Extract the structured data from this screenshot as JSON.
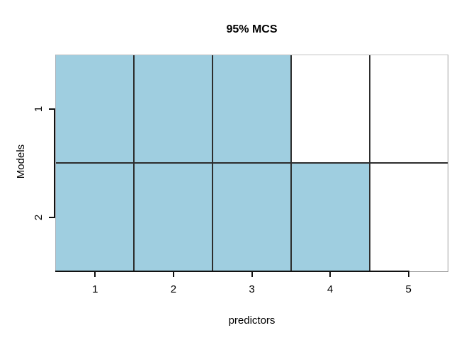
{
  "chart_data": {
    "type": "heatmap",
    "title": "95% MCS",
    "xlabel": "predictors",
    "ylabel": "Models",
    "x_ticks": [
      "1",
      "2",
      "3",
      "4",
      "5"
    ],
    "y_ticks": [
      "1",
      "2"
    ],
    "categories": [
      "1",
      "2",
      "3",
      "4",
      "5"
    ],
    "series": [
      {
        "name": "1",
        "included": [
          1,
          1,
          1,
          0,
          0
        ]
      },
      {
        "name": "2",
        "included": [
          1,
          1,
          1,
          1,
          0
        ]
      }
    ],
    "xlim": [
      0.5,
      5.5
    ],
    "ylim": [
      0.5,
      2.5
    ],
    "legend_position": "none",
    "grid": "cell-borders",
    "fill_color": "#9fcee0",
    "empty_color": "#ffffff",
    "inner_border_color": "#2d2d2d",
    "outer_border_color": "#999999",
    "axis_color": "#111111",
    "text_color": "#000000"
  }
}
